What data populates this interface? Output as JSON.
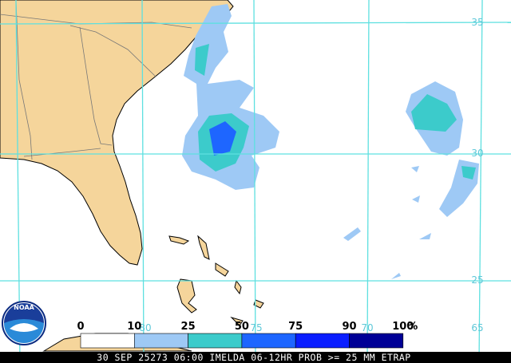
{
  "map": {
    "lat_labels": [
      "35",
      "30",
      "25"
    ],
    "lon_labels": [
      "80",
      "75",
      "70",
      "65"
    ],
    "legend": {
      "labels": [
        "0",
        "10",
        "25",
        "50",
        "75",
        "90",
        "100"
      ],
      "unit": "%",
      "colors": [
        "#ffffff",
        "#9ec9f5",
        "#3ccbcb",
        "#1e66ff",
        "#0a1eff",
        "#000096"
      ]
    },
    "logo": "NOAA",
    "caption": "30 SEP 25273 06:00 IMELDA 06-12HR PROB >= 25 MM ETRAP"
  }
}
